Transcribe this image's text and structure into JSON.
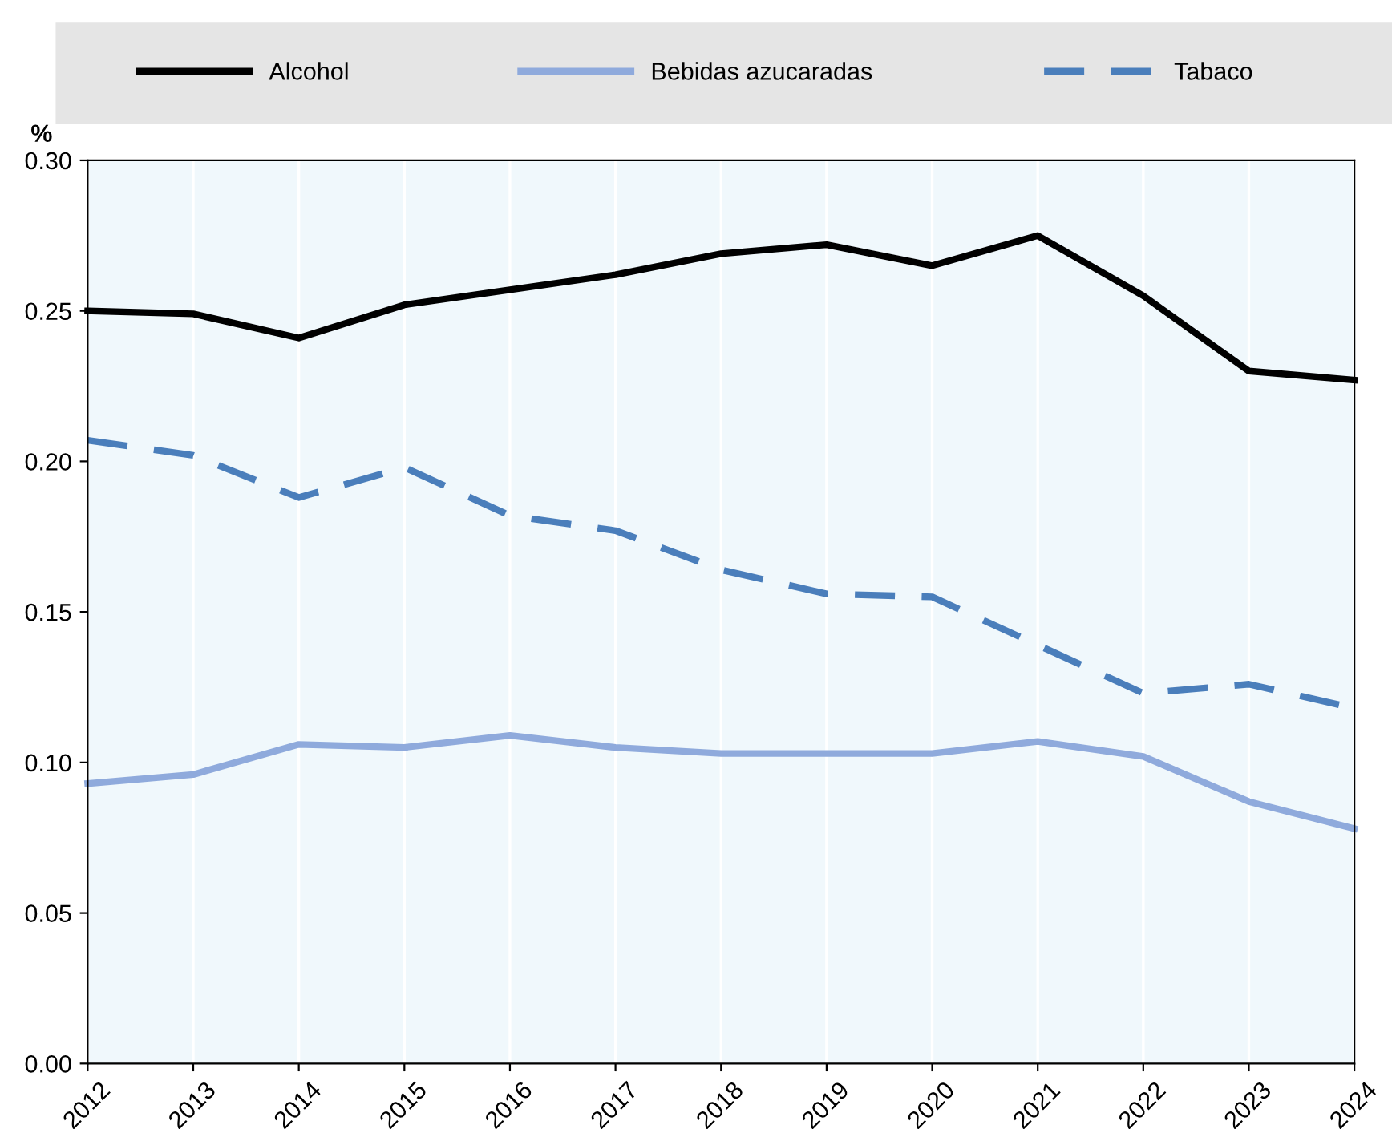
{
  "chart_data": {
    "type": "line",
    "ylabel": "%",
    "x": [
      2012,
      2013,
      2014,
      2015,
      2016,
      2017,
      2018,
      2019,
      2020,
      2021,
      2022,
      2023,
      2024
    ],
    "series": [
      {
        "name": "Alcohol",
        "color": "#000000",
        "line_style": "solid",
        "values": [
          0.25,
          0.249,
          0.241,
          0.252,
          0.257,
          0.262,
          0.269,
          0.272,
          0.265,
          0.275,
          0.255,
          0.23,
          0.227
        ]
      },
      {
        "name": "Bebidas azucaradas",
        "color": "#8faadc",
        "line_style": "solid",
        "values": [
          0.093,
          0.096,
          0.106,
          0.105,
          0.109,
          0.105,
          0.103,
          0.103,
          0.103,
          0.107,
          0.102,
          0.087,
          0.078
        ]
      },
      {
        "name": "Tabaco",
        "color": "#4a7ebb",
        "line_style": "dashed",
        "values": [
          0.207,
          0.202,
          0.188,
          0.198,
          0.182,
          0.177,
          0.164,
          0.156,
          0.155,
          0.139,
          0.123,
          0.126,
          0.118
        ]
      }
    ],
    "xlim": [
      2012,
      2024
    ],
    "xticks": [
      2012,
      2013,
      2014,
      2015,
      2016,
      2017,
      2018,
      2019,
      2020,
      2021,
      2022,
      2023,
      2024
    ],
    "ylim": [
      0,
      0.3
    ],
    "yticks": [
      {
        "value": 0,
        "label": "0.00"
      },
      {
        "value": 0.05,
        "label": "0.05"
      },
      {
        "value": 0.1,
        "label": "0.10"
      },
      {
        "value": 0.15,
        "label": "0.15"
      },
      {
        "value": 0.2,
        "label": "0.20"
      },
      {
        "value": 0.25,
        "label": "0.25"
      },
      {
        "value": 0.3,
        "label": "0.30"
      }
    ],
    "grid": "x",
    "legend": "top",
    "marker": "none"
  }
}
